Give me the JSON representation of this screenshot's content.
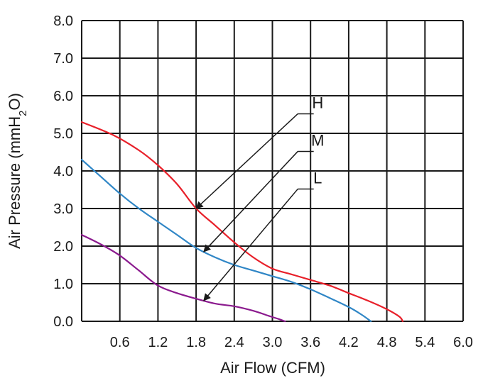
{
  "chart_data": {
    "type": "line",
    "xlabel": "Air Flow (CFM)",
    "ylabel": "Air Pressure (mmH",
    "ylabel_sub": "2",
    "ylabel_tail": "O)",
    "xlim": [
      0,
      6.0
    ],
    "ylim": [
      0,
      8.0
    ],
    "grid": true,
    "x_ticks": [
      0.6,
      1.2,
      1.8,
      2.4,
      3.0,
      3.6,
      4.2,
      4.8,
      5.4,
      6.0
    ],
    "x_tick_labels": [
      "0.6",
      "1.2",
      "1.8",
      "2.4",
      "3.0",
      "3.6",
      "4.2",
      "4.8",
      "5.4",
      "6.0"
    ],
    "y_ticks": [
      0,
      1,
      2,
      3,
      4,
      5,
      6,
      7,
      8
    ],
    "y_tick_labels": [
      "0.0",
      "1.0",
      "2.0",
      "3.0",
      "4.0",
      "5.0",
      "6.0",
      "7.0",
      "8.0"
    ],
    "series": [
      {
        "name": "H",
        "color": "#e8202a",
        "x": [
          0,
          0.5,
          0.9,
          1.2,
          1.5,
          1.8,
          2.1,
          2.4,
          2.7,
          3.0,
          3.3,
          3.6,
          3.9,
          4.2,
          4.5,
          4.8,
          5.0,
          5.05
        ],
        "y": [
          5.3,
          4.95,
          4.55,
          4.15,
          3.65,
          3.0,
          2.55,
          2.1,
          1.7,
          1.4,
          1.25,
          1.1,
          0.95,
          0.75,
          0.55,
          0.32,
          0.12,
          0
        ]
      },
      {
        "name": "M",
        "color": "#2f86c6",
        "x": [
          0,
          0.3,
          0.6,
          0.9,
          1.2,
          1.5,
          1.8,
          2.1,
          2.4,
          2.7,
          3.0,
          3.3,
          3.6,
          3.9,
          4.2,
          4.4,
          4.55
        ],
        "y": [
          4.3,
          3.85,
          3.4,
          3.0,
          2.65,
          2.3,
          1.95,
          1.7,
          1.5,
          1.35,
          1.2,
          1.05,
          0.85,
          0.62,
          0.38,
          0.18,
          0
        ]
      },
      {
        "name": "L",
        "color": "#8b1a8e",
        "x": [
          0,
          0.3,
          0.6,
          0.9,
          1.2,
          1.5,
          1.8,
          2.1,
          2.4,
          2.7,
          2.95,
          3.1,
          3.2
        ],
        "y": [
          2.3,
          2.05,
          1.75,
          1.35,
          0.95,
          0.75,
          0.6,
          0.47,
          0.4,
          0.28,
          0.14,
          0.06,
          0
        ]
      }
    ],
    "annotations": [
      {
        "label": "H",
        "text_x": 3.4,
        "text_y": 5.52,
        "line_x2": 3.65,
        "tip_x": 1.8,
        "tip_y": 3.0
      },
      {
        "label": "M",
        "text_x": 3.4,
        "text_y": 4.52,
        "line_x2": 3.65,
        "tip_x": 1.92,
        "tip_y": 1.85
      },
      {
        "label": "L",
        "text_x": 3.4,
        "text_y": 3.52,
        "line_x2": 3.65,
        "tip_x": 1.92,
        "tip_y": 0.55
      }
    ]
  }
}
